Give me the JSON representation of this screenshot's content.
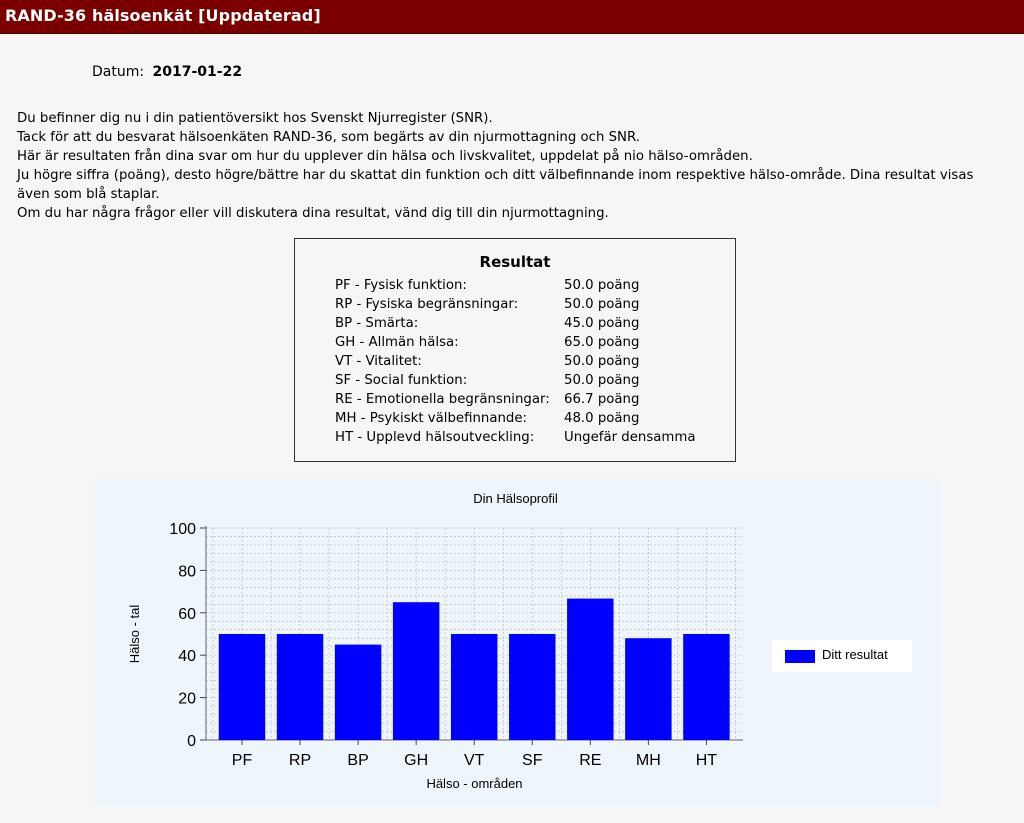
{
  "header": {
    "title": "RAND-36 hälsoenkät  [Uppdaterad]"
  },
  "date": {
    "label": "Datum:",
    "value": "2017-01-22"
  },
  "intro": {
    "lines": [
      "Du befinner dig nu i din patientöversikt hos Svenskt Njurregister (SNR).",
      "Tack för att du besvarat hälsoenkäten RAND-36, som begärts av din njurmottagning och SNR.",
      "Här är resultaten från dina svar om hur du upplever din hälsa och livskvalitet, uppdelat på nio hälso-områden.",
      "Ju högre siffra (poäng), desto högre/bättre har du skattat din funktion och ditt välbefinnande inom respektive hälso-område. Dina resultat visas",
      "även som blå staplar.",
      "Om du har några frågor eller vill diskutera dina resultat, vänd dig till din njurmottagning."
    ]
  },
  "results": {
    "title": "Resultat",
    "rows": [
      {
        "label": "PF - Fysisk funktion:",
        "value": "50.0 poäng"
      },
      {
        "label": "RP - Fysiska begränsningar:",
        "value": "50.0 poäng"
      },
      {
        "label": "BP - Smärta:",
        "value": "45.0 poäng"
      },
      {
        "label": "GH - Allmän hälsa:",
        "value": "65.0 poäng"
      },
      {
        "label": "VT - Vitalitet:",
        "value": "50.0 poäng"
      },
      {
        "label": "SF - Social funktion:",
        "value": "50.0 poäng"
      },
      {
        "label": "RE - Emotionella begränsningar:",
        "value": "66.7 poäng"
      },
      {
        "label": "MH - Psykiskt välbefinnande:",
        "value": "48.0 poäng"
      },
      {
        "label": "HT - Upplevd hälsoutveckling:",
        "value": "Ungefär densamma"
      }
    ]
  },
  "chart_data": {
    "type": "bar",
    "title": "Din Hälsoprofil",
    "xlabel": "Hälso - områden",
    "ylabel": "Hälso - tal",
    "categories": [
      "PF",
      "RP",
      "BP",
      "GH",
      "VT",
      "SF",
      "RE",
      "MH",
      "HT"
    ],
    "series": [
      {
        "name": "Ditt resultat",
        "values": [
          50,
          50,
          45,
          65,
          50,
          50,
          66.7,
          48,
          50
        ],
        "color": "#0000ff"
      }
    ],
    "ylim": [
      0,
      100
    ],
    "yticks": [
      "0",
      "20",
      "40",
      "60",
      "80",
      "100"
    ],
    "grid": true,
    "legend_position": "right"
  }
}
